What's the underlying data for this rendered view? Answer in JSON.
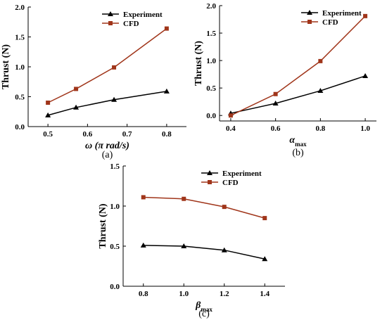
{
  "colors": {
    "experiment": "#000000",
    "cfd": "#a0351a"
  },
  "chart_data": [
    {
      "type": "line",
      "panel_label": "(a)",
      "xlabel": "ω (π rad/s)",
      "ylabel": "Thrust (N)",
      "xlim": [
        0.45,
        0.85
      ],
      "ylim": [
        0,
        2.0
      ],
      "xticks": [
        "0.5",
        "0.6",
        "0.7",
        "0.8"
      ],
      "yticks": [
        "0.0",
        "0.5",
        "1.0",
        "1.5",
        "2.0"
      ],
      "legend_position": "top-right",
      "series": [
        {
          "name": "Experiment",
          "marker": "triangle",
          "x": [
            0.5,
            0.571,
            0.667,
            0.8
          ],
          "y": [
            0.19,
            0.32,
            0.45,
            0.59
          ]
        },
        {
          "name": "CFD",
          "marker": "square",
          "x": [
            0.5,
            0.571,
            0.667,
            0.8
          ],
          "y": [
            0.4,
            0.63,
            0.99,
            1.64
          ]
        }
      ]
    },
    {
      "type": "line",
      "panel_label": "(b)",
      "xlabel": "α",
      "xlabel_sub": "max",
      "ylabel": "Thrust (N)",
      "xlim": [
        0.35,
        1.05
      ],
      "ylim": [
        -0.1,
        2.0
      ],
      "xticks": [
        "0.4",
        "0.6",
        "0.8",
        "1.0"
      ],
      "yticks": [
        "0.0",
        "0.5",
        "1.0",
        "1.5",
        "2.0"
      ],
      "legend_position": "top-right",
      "series": [
        {
          "name": "Experiment",
          "marker": "triangle",
          "x": [
            0.4,
            0.6,
            0.8,
            1.0
          ],
          "y": [
            0.04,
            0.22,
            0.45,
            0.72
          ]
        },
        {
          "name": "CFD",
          "marker": "square",
          "x": [
            0.4,
            0.6,
            0.8,
            1.0
          ],
          "y": [
            0.0,
            0.39,
            0.99,
            1.81
          ]
        }
      ]
    },
    {
      "type": "line",
      "panel_label": "(c)",
      "xlabel": "β",
      "xlabel_sub": "max",
      "ylabel": "Thrust (N)",
      "xlim": [
        0.7,
        1.5
      ],
      "ylim": [
        0,
        1.5
      ],
      "xticks": [
        "0.8",
        "1.0",
        "1.2",
        "1.4"
      ],
      "yticks": [
        "0.0",
        "0.5",
        "1.0",
        "1.5"
      ],
      "legend_position": "top-right",
      "series": [
        {
          "name": "Experiment",
          "marker": "triangle",
          "x": [
            0.8,
            1.0,
            1.2,
            1.4
          ],
          "y": [
            0.51,
            0.5,
            0.45,
            0.34
          ]
        },
        {
          "name": "CFD",
          "marker": "square",
          "x": [
            0.8,
            1.0,
            1.2,
            1.4
          ],
          "y": [
            1.11,
            1.09,
            0.99,
            0.85
          ]
        }
      ]
    }
  ]
}
